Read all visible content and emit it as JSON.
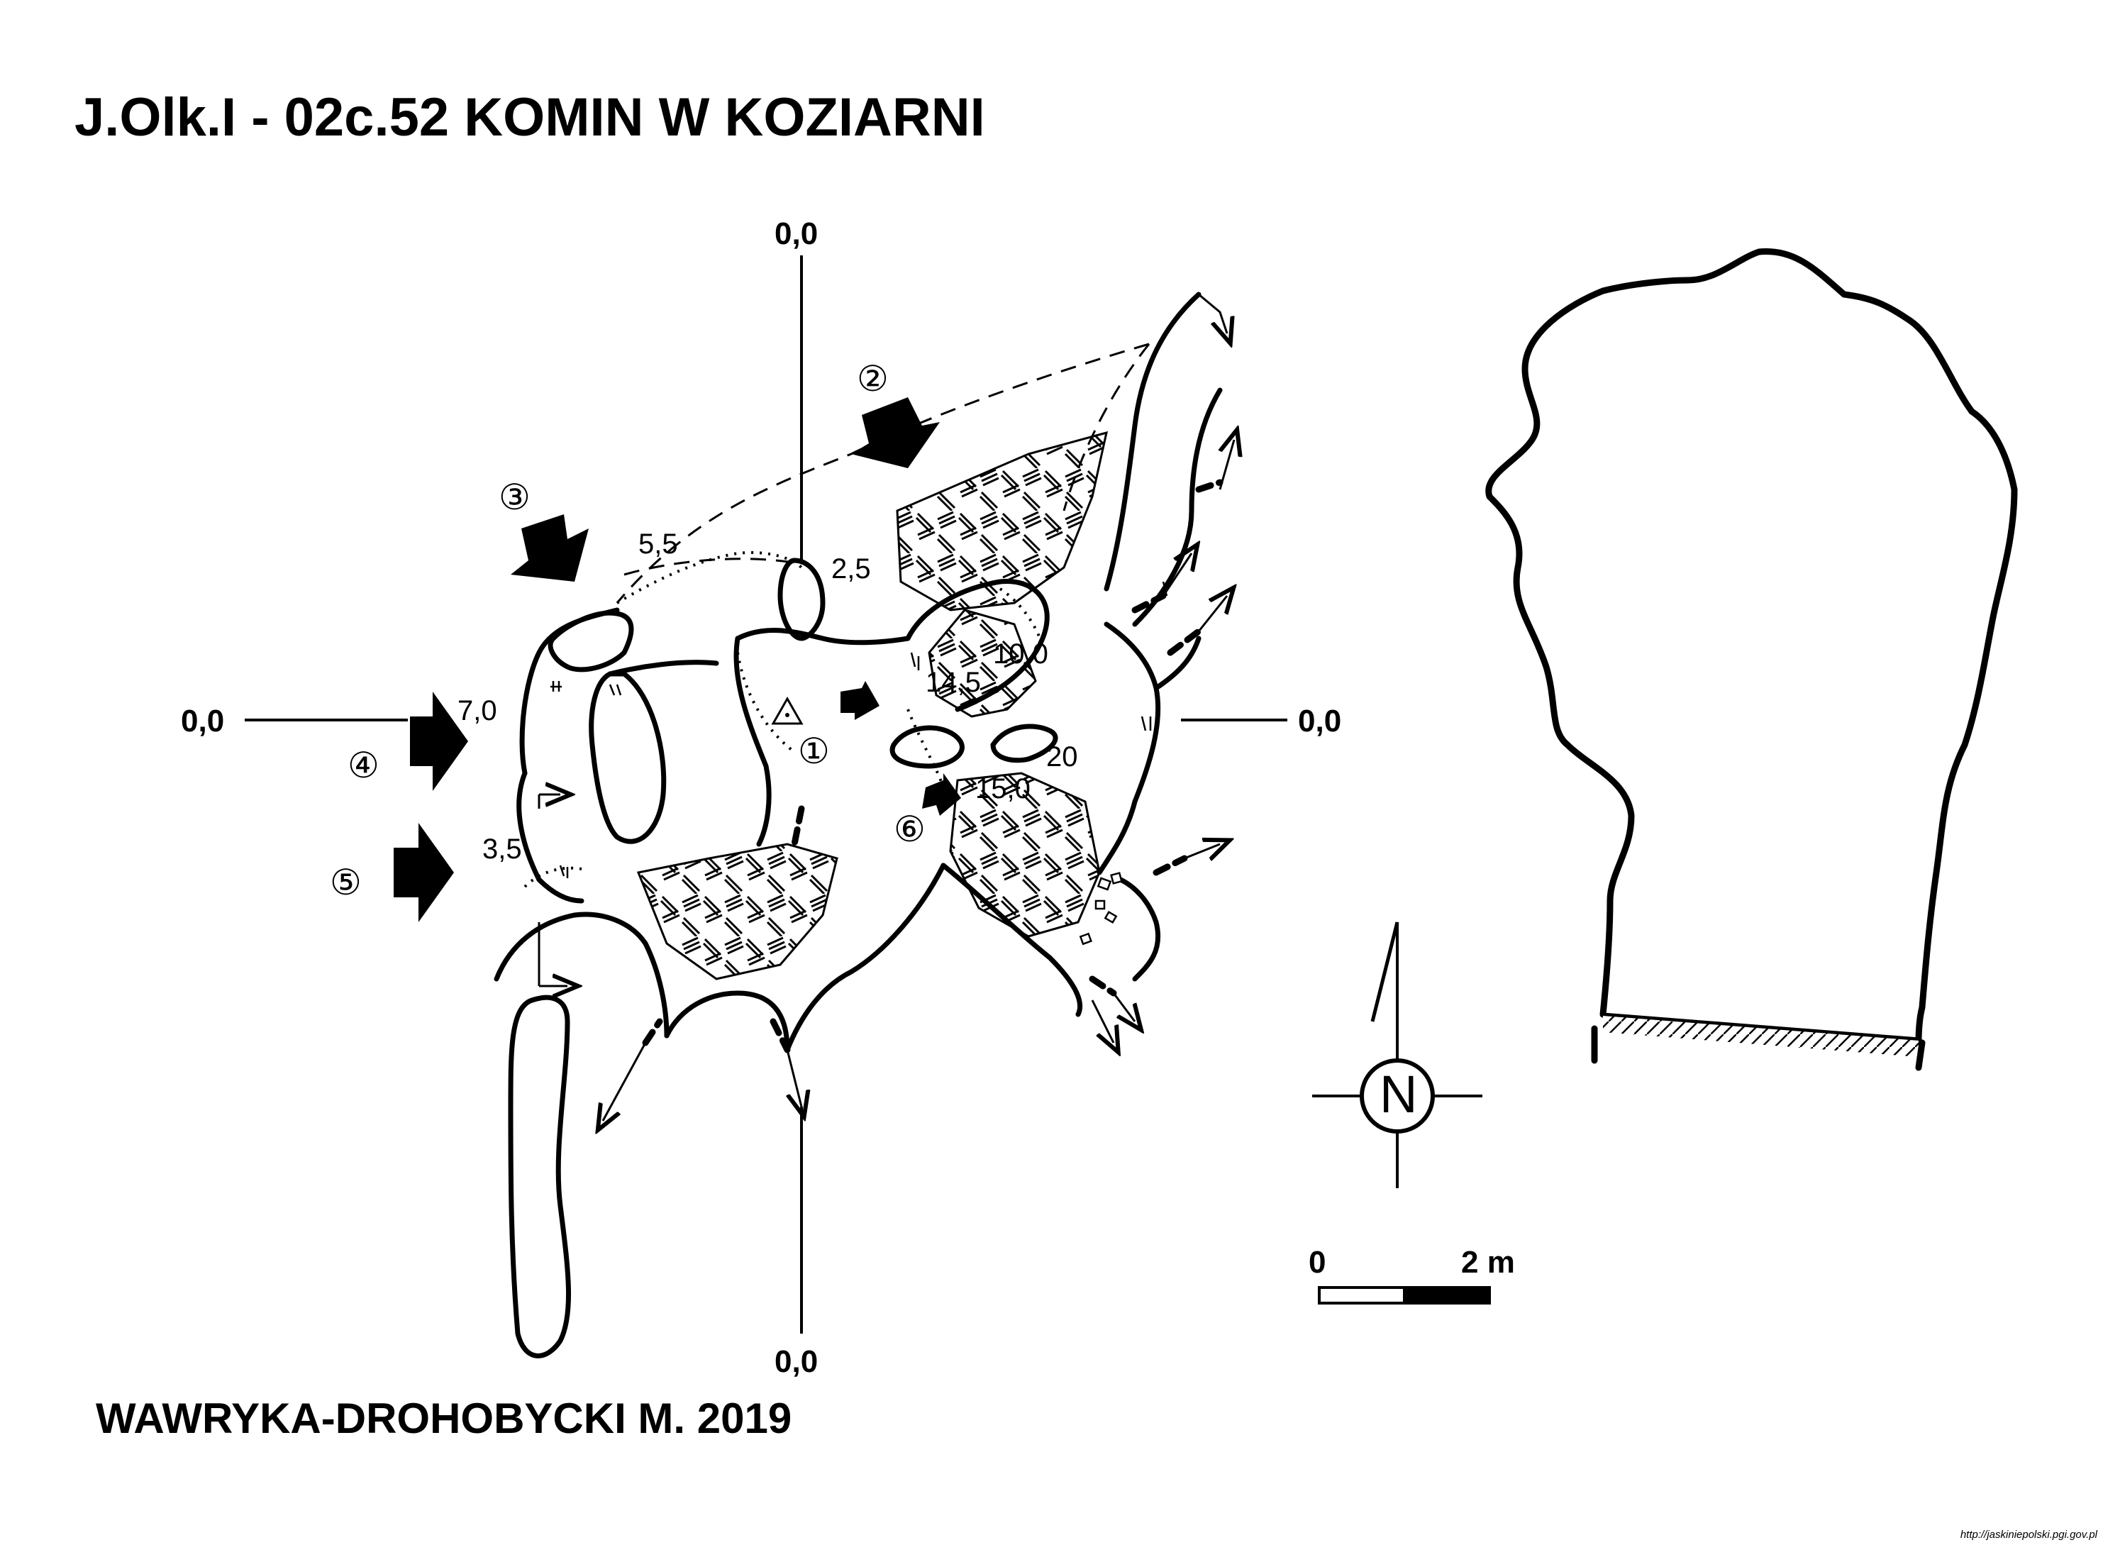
{
  "title": "J.Olk.I - 02c.52  KOMIN W KOZIARNI",
  "author": "WAWRYKA-DROHOBYCKI M. 2019",
  "source": "http://jaskiniepolski.pgi.gov.pl",
  "axis_labels": {
    "top": "0,0",
    "bottom": "0,0",
    "left": "0,0",
    "right": "0,0"
  },
  "depth_labels": [
    "5,5",
    "2,5",
    "10,0",
    "14,5",
    "7,0",
    "20",
    "15,0",
    "3,5"
  ],
  "profile_numbers": [
    "①",
    "②",
    "③",
    "④",
    "⑤",
    "⑥"
  ],
  "north": "N",
  "scale": {
    "start": "0",
    "end": "2 m"
  },
  "colors": {
    "ink": "#000000",
    "paper": "#ffffff"
  }
}
